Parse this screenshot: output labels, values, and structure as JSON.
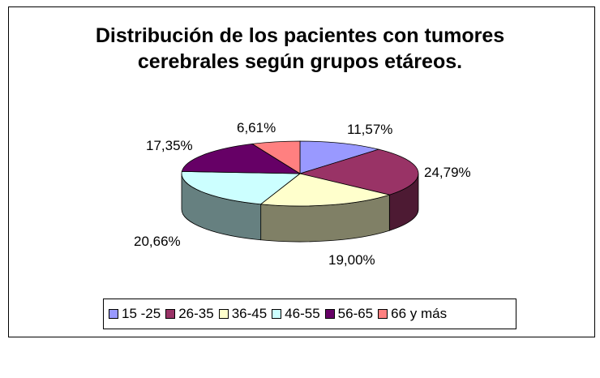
{
  "chart_data": {
    "type": "pie",
    "title_lines": [
      "Distribución de los pacientes con tumores",
      "cerebrales según grupos etáreos."
    ],
    "categories": [
      "15 -25",
      "26-35",
      "36-45",
      "46-55",
      "56-65",
      "66 y más"
    ],
    "values": [
      11.57,
      24.79,
      19.0,
      20.66,
      17.35,
      6.61
    ],
    "labels": [
      "11,57%",
      "24,79%",
      "19,00%",
      "20,66%",
      "17,35%",
      "6,61%"
    ],
    "colors": [
      "#9999ff",
      "#993366",
      "#ffffcc",
      "#ccffff",
      "#660066",
      "#ff8080"
    ],
    "three_d": true,
    "legend_position": "bottom"
  }
}
